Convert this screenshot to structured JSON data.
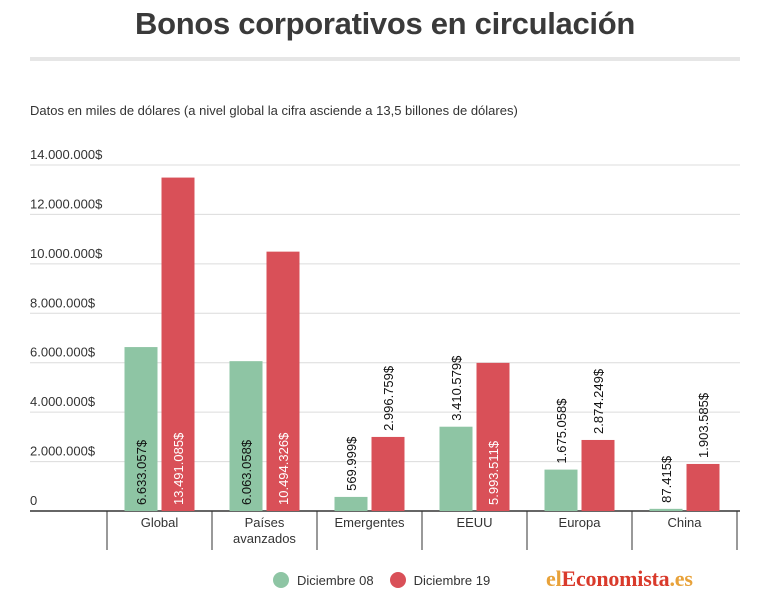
{
  "header": {
    "title": "Bonos corporativos en circulación",
    "subtitle": "Datos en miles de dólares (a nivel global la cifra asciende a 13,5 billones de dólares)"
  },
  "chart_data": {
    "type": "bar",
    "title": "Bonos corporativos en circulación",
    "subtitle": "Datos en miles de dólares (a nivel global la cifra asciende a 13,5 billones de dólares)",
    "categories": [
      "Global",
      "Países avanzados",
      "Emergentes",
      "EEUU",
      "Europa",
      "China"
    ],
    "series": [
      {
        "name": "Diciembre 08",
        "color": "#8ec5a4",
        "values": [
          6633057,
          6063058,
          569999,
          3410579,
          1675058,
          87415
        ],
        "labels": [
          "6.633.057$",
          "6.063.058$",
          "569.999$",
          "3.410.579$",
          "1.675.058$",
          "87.415$"
        ]
      },
      {
        "name": "Diciembre 19",
        "color": "#d95058",
        "values": [
          13491085,
          10494326,
          2996759,
          5993511,
          2874249,
          1903585
        ],
        "labels": [
          "13.491.085$",
          "10.494.326$",
          "2.996.759$",
          "5.993.511$",
          "2.874.249$",
          "1.903.585$"
        ]
      }
    ],
    "yticks": [
      0,
      2000000,
      4000000,
      6000000,
      8000000,
      10000000,
      12000000,
      14000000
    ],
    "ytick_labels": [
      "0",
      "2.000.000$",
      "4.000.000$",
      "6.000.000$",
      "8.000.000$",
      "10.000.000$",
      "12.000.000$",
      "14.000.000$"
    ],
    "ylim": [
      0,
      14000000
    ],
    "xlabel": "",
    "ylabel": "",
    "grid": true,
    "legend_position": "bottom-center"
  },
  "legend": {
    "items": [
      {
        "label": "Diciembre 08",
        "color": "#8ec5a4"
      },
      {
        "label": "Diciembre 19",
        "color": "#d95058"
      }
    ]
  },
  "brand": {
    "part1": "el",
    "part2": "Economista",
    "part3": ".es"
  }
}
